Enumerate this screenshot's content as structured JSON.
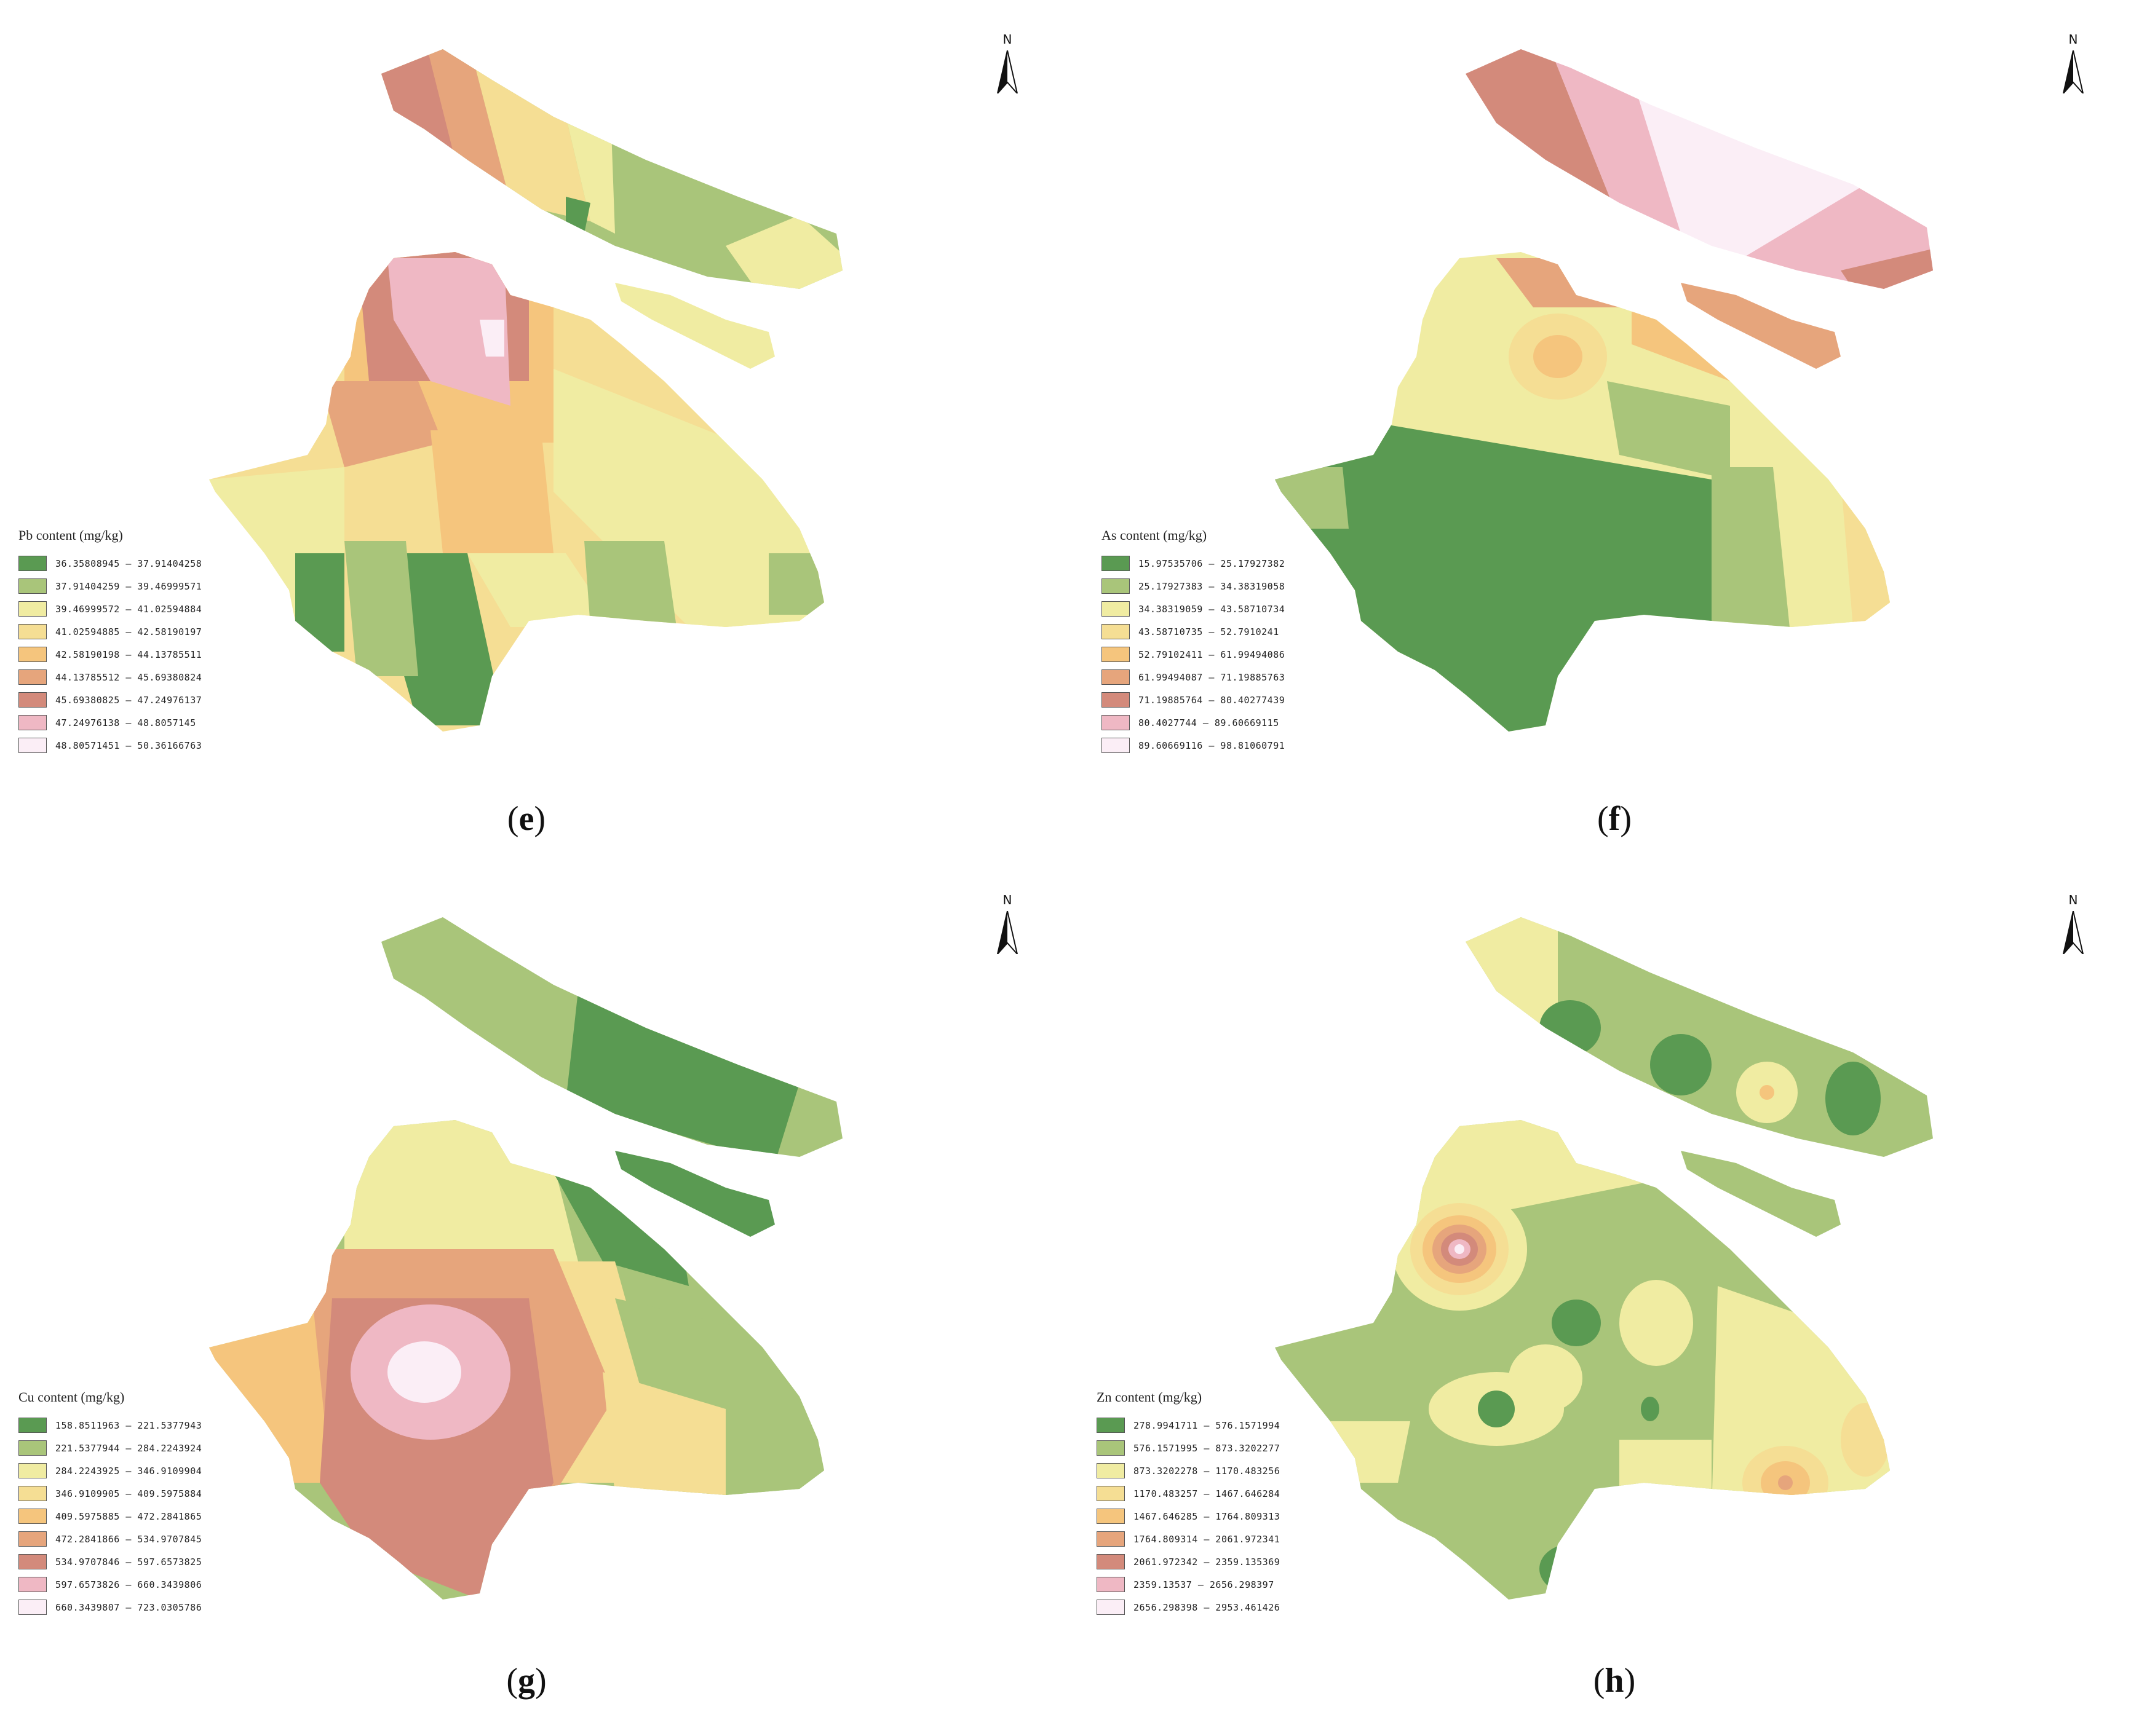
{
  "north_label": "N",
  "panels": [
    {
      "id": "e",
      "label": "e",
      "legend_title": "Pb content (mg/kg)",
      "classes": [
        {
          "range": "36.35808945 – 37.91404258",
          "color": "#5a9a52"
        },
        {
          "range": "37.91404259 – 39.46999571",
          "color": "#a9c57a"
        },
        {
          "range": "39.46999572 – 41.02594884",
          "color": "#f0eca2"
        },
        {
          "range": "41.02594885 – 42.58190197",
          "color": "#f5de94"
        },
        {
          "range": "42.58190198 – 44.13785511",
          "color": "#f5c57d"
        },
        {
          "range": "44.13785512 – 45.69380824",
          "color": "#e6a57c"
        },
        {
          "range": "45.69380825 – 47.24976137",
          "color": "#d38a7b"
        },
        {
          "range": "47.24976138 – 48.8057145",
          "color": "#efb8c4"
        },
        {
          "range": "48.80571451 – 50.36166763",
          "color": "#fbeef6"
        }
      ]
    },
    {
      "id": "f",
      "label": "f",
      "legend_title": "As content (mg/kg)",
      "classes": [
        {
          "range": "15.97535706 – 25.17927382",
          "color": "#5a9a52"
        },
        {
          "range": "25.17927383 – 34.38319058",
          "color": "#a9c57a"
        },
        {
          "range": "34.38319059 – 43.58710734",
          "color": "#f0eca2"
        },
        {
          "range": "43.58710735 – 52.7910241",
          "color": "#f5de94"
        },
        {
          "range": "52.79102411 – 61.99494086",
          "color": "#f5c57d"
        },
        {
          "range": "61.99494087 – 71.19885763",
          "color": "#e6a57c"
        },
        {
          "range": "71.19885764 – 80.40277439",
          "color": "#d38a7b"
        },
        {
          "range": "80.4027744 – 89.60669115",
          "color": "#efb8c4"
        },
        {
          "range": "89.60669116 – 98.81060791",
          "color": "#fbeef6"
        }
      ]
    },
    {
      "id": "g",
      "label": "g",
      "legend_title": "Cu content (mg/kg)",
      "classes": [
        {
          "range": "158.8511963 – 221.5377943",
          "color": "#5a9a52"
        },
        {
          "range": "221.5377944 – 284.2243924",
          "color": "#a9c57a"
        },
        {
          "range": "284.2243925 – 346.9109904",
          "color": "#f0eca2"
        },
        {
          "range": "346.9109905 – 409.5975884",
          "color": "#f5de94"
        },
        {
          "range": "409.5975885 – 472.2841865",
          "color": "#f5c57d"
        },
        {
          "range": "472.2841866 – 534.9707845",
          "color": "#e6a57c"
        },
        {
          "range": "534.9707846 – 597.6573825",
          "color": "#d38a7b"
        },
        {
          "range": "597.6573826 – 660.3439806",
          "color": "#efb8c4"
        },
        {
          "range": "660.3439807 – 723.0305786",
          "color": "#fbeef6"
        }
      ]
    },
    {
      "id": "h",
      "label": "h",
      "legend_title": "Zn content (mg/kg)",
      "classes": [
        {
          "range": "278.9941711 – 576.1571994",
          "color": "#5a9a52"
        },
        {
          "range": "576.1571995 – 873.3202277",
          "color": "#a9c57a"
        },
        {
          "range": "873.3202278 – 1170.483256",
          "color": "#f0eca2"
        },
        {
          "range": "1170.483257 – 1467.646284",
          "color": "#f5de94"
        },
        {
          "range": "1467.646285 – 1764.809313",
          "color": "#f5c57d"
        },
        {
          "range": "1764.809314 – 2061.972341",
          "color": "#e6a57c"
        },
        {
          "range": "2061.972342 – 2359.135369",
          "color": "#d38a7b"
        },
        {
          "range": "2359.13537 – 2656.298397",
          "color": "#efb8c4"
        },
        {
          "range": "2656.298398 – 2953.461426",
          "color": "#fbeef6"
        }
      ]
    }
  ]
}
